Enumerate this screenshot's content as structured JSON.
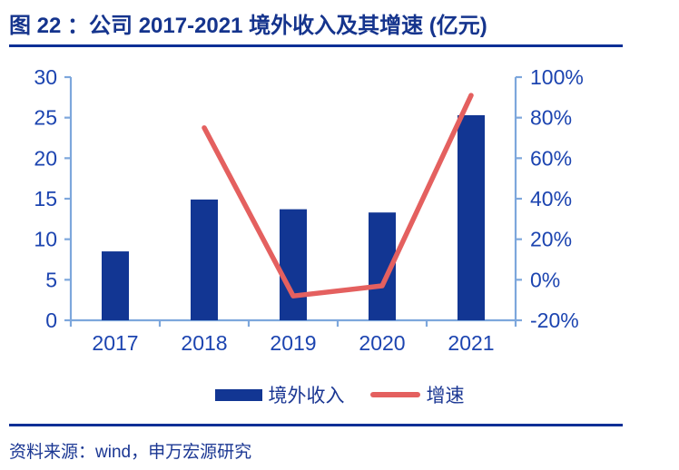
{
  "figure": {
    "title": "图 22 ：公司 2017-2021 境外收入及其增速 (亿元)",
    "source": "资料来源：wind，申万宏源研究"
  },
  "legend": {
    "bar_label": "境外收入",
    "line_label": "增速"
  },
  "colors": {
    "title_text": "#15348D",
    "rule": "#0A2F96",
    "bar": "#123693",
    "line": "#E4605F",
    "axis": "#7DA7DC",
    "tick_text": "#1C44B0",
    "legend_text": "#1B3793",
    "source_text": "#1B3793",
    "background": "#FFFFFF"
  },
  "chart_data": {
    "type": "bar+line",
    "title": "公司 2017-2021 境外收入及其增速 (亿元)",
    "categories": [
      "2017",
      "2018",
      "2019",
      "2020",
      "2021"
    ],
    "series": [
      {
        "name": "境外收入",
        "type": "bar",
        "axis": "left",
        "unit": "亿元",
        "values": [
          8.5,
          14.9,
          13.7,
          13.3,
          25.3
        ]
      },
      {
        "name": "增速",
        "type": "line",
        "axis": "right",
        "unit": "%",
        "values": [
          null,
          75,
          -8,
          -3,
          91
        ]
      }
    ],
    "left_axis": {
      "range": [
        0,
        30
      ],
      "tick_step": 5,
      "tick_labels": [
        "0",
        "5",
        "10",
        "15",
        "20",
        "25",
        "30"
      ]
    },
    "right_axis": {
      "range": [
        -20,
        100
      ],
      "tick_step": 20,
      "tick_labels": [
        "-20%",
        "0%",
        "20%",
        "40%",
        "60%",
        "80%",
        "100%"
      ]
    },
    "grid": false,
    "legend_position": "bottom"
  }
}
